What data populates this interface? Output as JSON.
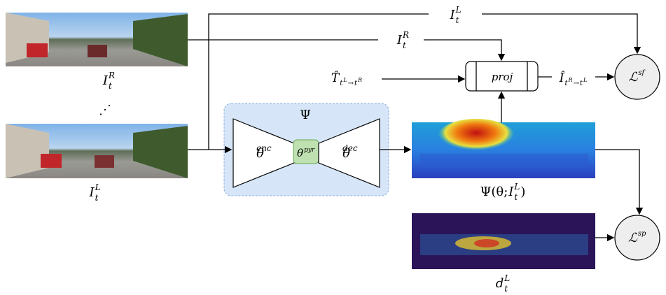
{
  "labels": {
    "right_image": {
      "base": "I",
      "sub": "t",
      "sup": "R"
    },
    "dots": "⋰",
    "left_image": {
      "base": "I",
      "sub": "t",
      "sup": "L"
    },
    "network": "Ψ",
    "encoder": {
      "base": "θ",
      "sup": "enc"
    },
    "pyramid": {
      "base": "θ",
      "sup": "pyr"
    },
    "decoder": {
      "base": "θ",
      "sup": "dec"
    },
    "depth_prediction": {
      "prefix": "Ψ(θ; ",
      "base": "I",
      "sub": "t",
      "sup": "L",
      "suffix": ")"
    },
    "sparse_depth": {
      "base": "d",
      "sub": "t",
      "sup": "L"
    },
    "projection": "proj",
    "top_arrow_label": {
      "base": "I",
      "sub": "t",
      "sup": "L"
    },
    "middle_arrow_label": {
      "base": "I",
      "sub": "t",
      "sup": "R"
    },
    "pose": {
      "base": "T̂",
      "sub_1": "t",
      "sub_1_sup": "L",
      "arrow": "→",
      "sub_2": "t",
      "sub_2_sup": "R"
    },
    "warped_image": {
      "base": "Î",
      "sub_1": "t",
      "sub_1_sup": "R",
      "arrow": "→",
      "sub_2": "t",
      "sub_2_sup": "L"
    },
    "loss_sf": {
      "base": "ℒ",
      "sup": "sf"
    },
    "loss_sp": {
      "base": "ℒ",
      "sup": "sp"
    }
  }
}
